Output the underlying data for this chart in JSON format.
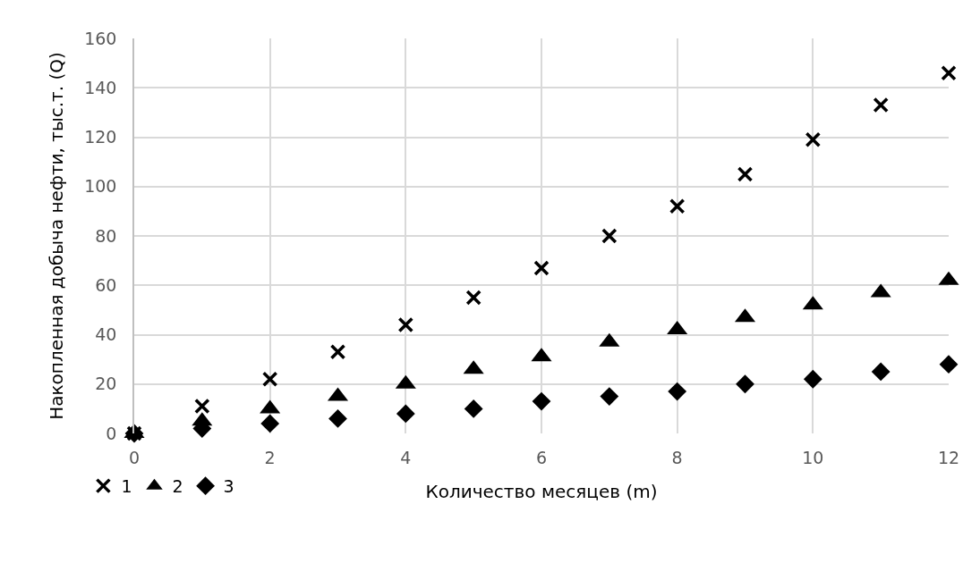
{
  "chart_data": {
    "type": "scatter",
    "xlabel": "Количество месяцев (m)",
    "ylabel": "Накопленная добыча нефти, тыс.т. (Q)",
    "x": [
      0,
      1,
      2,
      3,
      4,
      5,
      6,
      7,
      8,
      9,
      10,
      11,
      12
    ],
    "series": [
      {
        "name": "1",
        "color": "#000000",
        "marker": "cross",
        "values": [
          0,
          11,
          22,
          33,
          44,
          55,
          67,
          80,
          92,
          105,
          119,
          133,
          146
        ]
      },
      {
        "name": "2",
        "color": "#000000",
        "marker": "triangle",
        "values": [
          0,
          5,
          10,
          15,
          20,
          26,
          31,
          37,
          42,
          47,
          52,
          57,
          62
        ]
      },
      {
        "name": "3",
        "color": "#000000",
        "marker": "diamond",
        "values": [
          0,
          2,
          4,
          6,
          8,
          10,
          13,
          15,
          17,
          20,
          22,
          25,
          28
        ]
      }
    ],
    "xlim": [
      0,
      12
    ],
    "xticks": [
      0,
      2,
      4,
      6,
      8,
      10,
      12
    ],
    "ylim": [
      0,
      160
    ],
    "yticks": [
      0,
      20,
      40,
      60,
      80,
      100,
      120,
      140,
      160
    ],
    "grid": true,
    "legend": "bottom left"
  }
}
